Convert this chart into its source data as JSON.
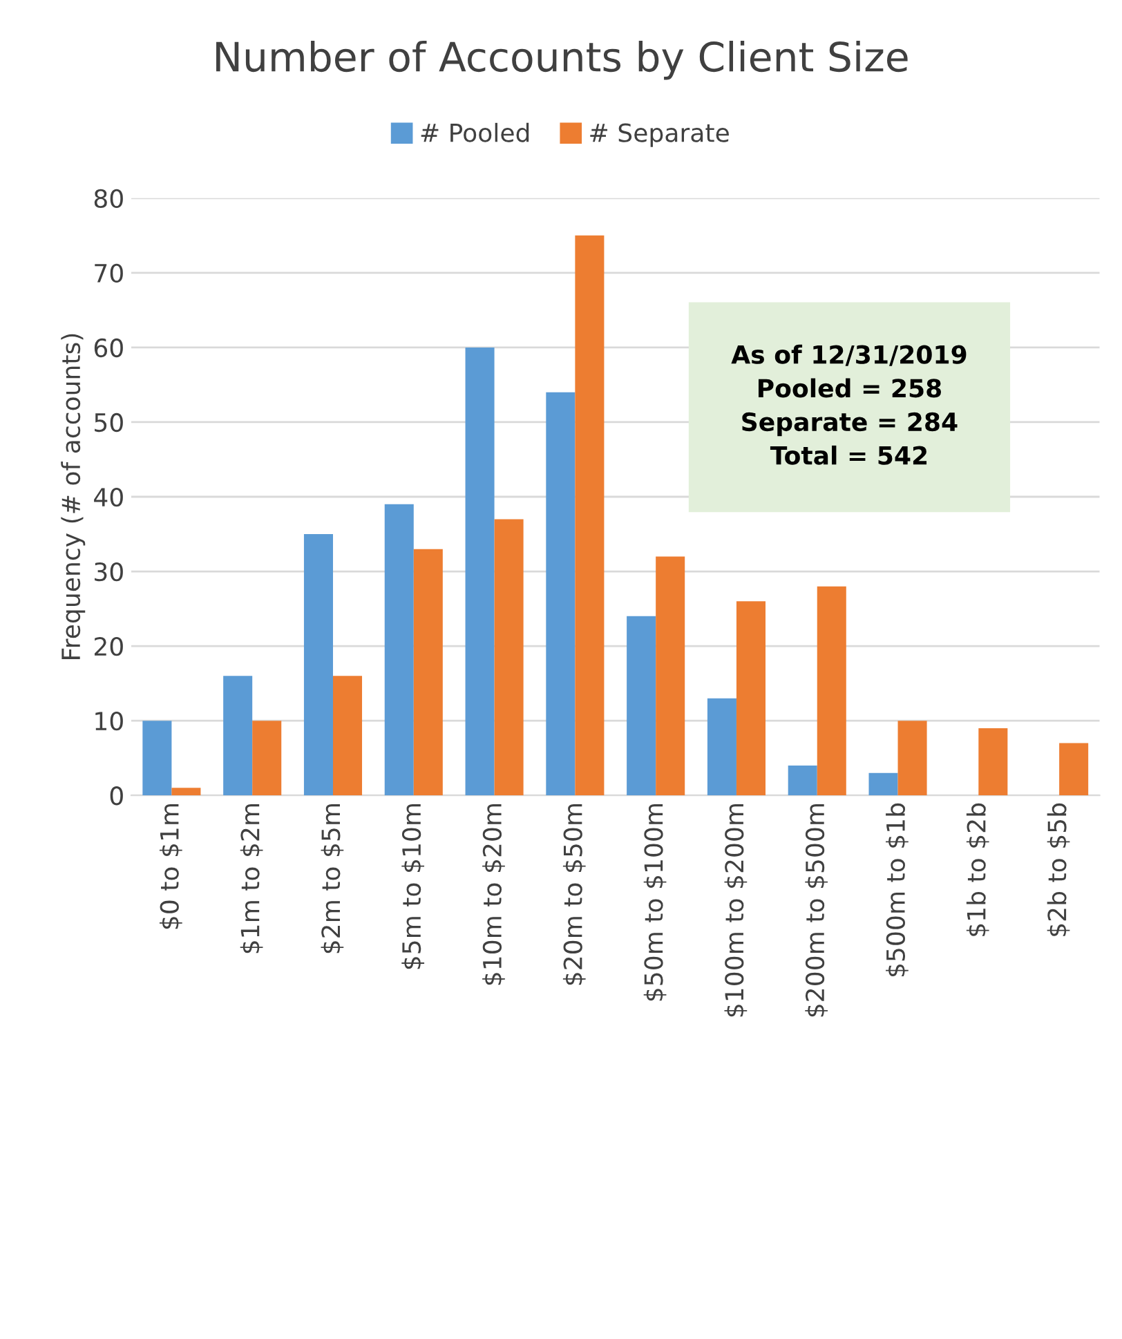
{
  "chart_data": {
    "type": "bar",
    "title": "Number of Accounts by Client Size",
    "ylabel": "Frequency (# of accounts)",
    "categories": [
      "$0 to $1m",
      "$1m to $2m",
      "$2m to $5m",
      "$5m to $10m",
      "$10m to $20m",
      "$20m to $50m",
      "$50m to $100m",
      "$100m to $200m",
      "$200m to $500m",
      "$500m to $1b",
      "$1b to $2b",
      "$2b to $5b"
    ],
    "series": [
      {
        "name": "# Pooled",
        "color": "#5b9bd5",
        "values": [
          10,
          16,
          35,
          39,
          60,
          54,
          24,
          13,
          4,
          3,
          null,
          null
        ]
      },
      {
        "name": "# Separate",
        "color": "#ed7d31",
        "values": [
          1,
          10,
          16,
          33,
          37,
          75,
          32,
          26,
          28,
          10,
          9,
          7
        ]
      }
    ],
    "ylim": [
      0,
      80
    ],
    "yticks": [
      0,
      10,
      20,
      30,
      40,
      50,
      60,
      70,
      80
    ],
    "grid": "y",
    "legend": "top",
    "annotations": [
      "As of 12/31/2019\nPooled = 258\nSeparate = 284\nTotal = 542"
    ]
  }
}
